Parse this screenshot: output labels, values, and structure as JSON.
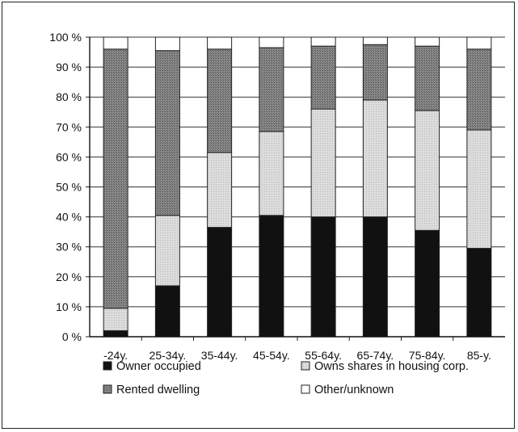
{
  "chart_data": {
    "type": "bar",
    "stacked": true,
    "title": "",
    "xlabel": "",
    "ylabel": "",
    "ylim": [
      0,
      100
    ],
    "y_ticks": [
      "0 %",
      "10 %",
      "20 %",
      "30 %",
      "40 %",
      "50 %",
      "60 %",
      "70 %",
      "80 %",
      "90 %",
      "100 %"
    ],
    "grid": true,
    "legend_position": "bottom",
    "categories": [
      "-24y.",
      "25-34y.",
      "35-44y.",
      "45-54y.",
      "55-64y.",
      "65-74y.",
      "75-84y.",
      "85-y."
    ],
    "series": [
      {
        "name": "Owner occupied",
        "color": "#111111",
        "values": [
          2,
          17,
          36.5,
          40.5,
          40,
          40,
          35.5,
          29.5
        ]
      },
      {
        "name": "Owns shares in housing corp.",
        "color": "#d4d4d4",
        "values": [
          7.5,
          23.5,
          25,
          28,
          36,
          39,
          40,
          39.5
        ]
      },
      {
        "name": "Rented dwelling",
        "color": "#777777",
        "values": [
          86.5,
          55,
          34.5,
          28,
          21,
          18.5,
          21.5,
          27
        ]
      },
      {
        "name": "Other/unknown",
        "color": "#ffffff",
        "values": [
          4,
          4.5,
          4,
          3.5,
          3,
          2.5,
          3,
          4
        ]
      }
    ]
  }
}
